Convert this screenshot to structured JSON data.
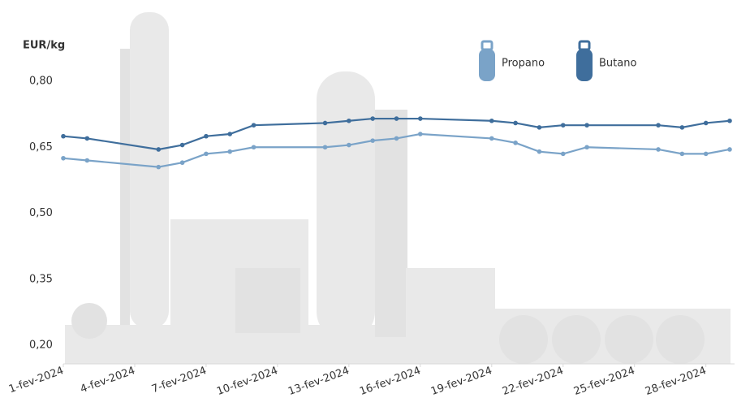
{
  "chart_data": {
    "type": "line",
    "y_label": "EUR/kg",
    "x": [
      1,
      2,
      5,
      6,
      7,
      8,
      9,
      12,
      13,
      14,
      15,
      16,
      19,
      20,
      21,
      22,
      23,
      26,
      27,
      28,
      29
    ],
    "series": [
      {
        "name": "Propano",
        "color": "#7aa3c8",
        "values": [
          0.625,
          0.62,
          0.605,
          0.615,
          0.635,
          0.64,
          0.65,
          0.65,
          0.655,
          0.665,
          0.67,
          0.68,
          0.67,
          0.66,
          0.64,
          0.635,
          0.65,
          0.645,
          0.635,
          0.635,
          0.645
        ]
      },
      {
        "name": "Butano",
        "color": "#3f6e9c",
        "values": [
          0.675,
          0.67,
          0.645,
          0.655,
          0.675,
          0.68,
          0.7,
          0.705,
          0.71,
          0.715,
          0.715,
          0.715,
          0.71,
          0.705,
          0.695,
          0.7,
          0.7,
          0.7,
          0.695,
          0.705,
          0.71
        ]
      }
    ],
    "xlim": [
      1,
      29
    ],
    "xticks": [
      {
        "value": 1,
        "label": "1-fev-2024"
      },
      {
        "value": 4,
        "label": "4-fev-2024"
      },
      {
        "value": 7,
        "label": "7-fev-2024"
      },
      {
        "value": 10,
        "label": "10-fev-2024"
      },
      {
        "value": 13,
        "label": "13-fev-2024"
      },
      {
        "value": 16,
        "label": "16-fev-2024"
      },
      {
        "value": 19,
        "label": "19-fev-2024"
      },
      {
        "value": 22,
        "label": "22-fev-2024"
      },
      {
        "value": 25,
        "label": "25-fev-2024"
      },
      {
        "value": 28,
        "label": "28-fev-2024"
      }
    ],
    "ylim": [
      0.2,
      0.8
    ],
    "yticks": [
      {
        "value": 0.2,
        "label": "0,20"
      },
      {
        "value": 0.35,
        "label": "0,35"
      },
      {
        "value": 0.5,
        "label": "0,50"
      },
      {
        "value": 0.65,
        "label": "0,65"
      },
      {
        "value": 0.8,
        "label": "0,80"
      }
    ],
    "grid": false
  }
}
